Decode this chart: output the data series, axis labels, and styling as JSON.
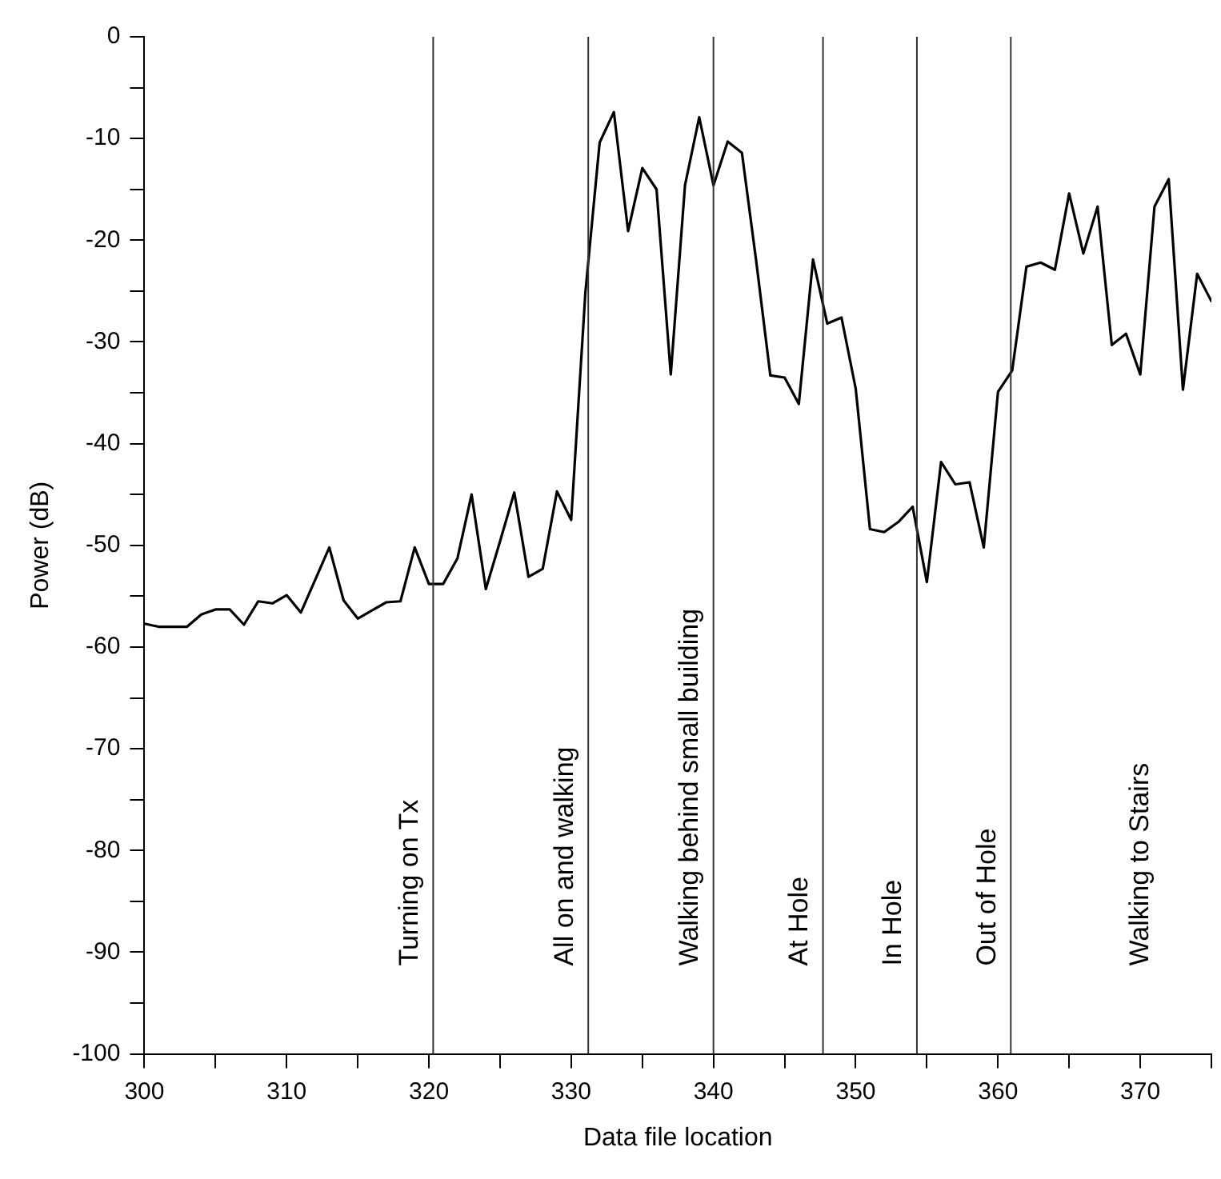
{
  "chart_data": {
    "type": "line",
    "xlabel": "Data file location",
    "ylabel": "Power (dB)",
    "x": [
      300,
      301,
      302,
      303,
      304,
      305,
      306,
      307,
      308,
      309,
      310,
      311,
      312,
      313,
      314,
      315,
      316,
      317,
      318,
      319,
      320,
      321,
      322,
      323,
      324,
      325,
      326,
      327,
      328,
      329,
      330,
      331,
      332,
      333,
      334,
      335,
      336,
      337,
      338,
      339,
      340,
      341,
      342,
      343,
      344,
      345,
      346,
      347,
      348,
      349,
      350,
      351,
      352,
      353,
      354,
      355,
      356,
      357,
      358,
      359,
      360,
      361,
      362,
      363,
      364,
      365,
      366,
      367,
      368,
      369,
      370,
      371,
      372,
      373,
      374,
      375
    ],
    "series": [
      {
        "color": "#000000",
        "values": [
          -57.7,
          -58.0,
          -58.0,
          -58.0,
          -56.8,
          -56.3,
          -56.3,
          -57.8,
          -55.5,
          -55.7,
          -54.9,
          -56.6,
          -53.4,
          -50.2,
          -55.4,
          -57.2,
          -56.4,
          -55.6,
          -55.5,
          -50.2,
          -53.8,
          -53.8,
          -51.3,
          -45.0,
          -54.3,
          -49.6,
          -44.8,
          -53.1,
          -52.3,
          -44.7,
          -47.5,
          -25.1,
          -10.4,
          -7.4,
          -19.1,
          -12.9,
          -15.0,
          -33.2,
          -14.6,
          -7.9,
          -14.6,
          -10.3,
          -11.4,
          -22.0,
          -33.3,
          -33.5,
          -36.1,
          -21.9,
          -28.2,
          -27.6,
          -34.6,
          -48.4,
          -48.7,
          -47.7,
          -46.2,
          -53.6,
          -41.8,
          -44.0,
          -43.8,
          -50.2,
          -34.9,
          -32.8,
          -22.6,
          -22.2,
          -22.9,
          -15.4,
          -21.3,
          -16.7,
          -30.3,
          -29.2,
          -33.2,
          -16.7,
          -14.0,
          -34.7,
          -23.3,
          -26.0
        ]
      }
    ],
    "xlim": [
      300,
      375
    ],
    "xticks": [
      300,
      {
        "value": 305,
        "label": null
      },
      310,
      {
        "value": 315,
        "label": null
      },
      320,
      {
        "value": 325,
        "label": null
      },
      330,
      {
        "value": 335,
        "label": null
      },
      340,
      {
        "value": 345,
        "label": null
      },
      350,
      {
        "value": 355,
        "label": null
      },
      360,
      {
        "value": 365,
        "label": null
      },
      370,
      {
        "value": 375,
        "label": null
      }
    ],
    "ylim": [
      -100,
      0
    ],
    "yticks": [
      -100,
      {
        "value": -95,
        "label": null
      },
      -90,
      {
        "value": -85,
        "label": null
      },
      -80,
      {
        "value": -75,
        "label": null
      },
      -70,
      {
        "value": -65,
        "label": null
      },
      -60,
      {
        "value": -55,
        "label": null
      },
      -50,
      {
        "value": -45,
        "label": null
      },
      -40,
      {
        "value": -35,
        "label": null
      },
      -30,
      {
        "value": -25,
        "label": null
      },
      -20,
      {
        "value": -15,
        "label": null
      },
      -10,
      {
        "value": -5,
        "label": null
      },
      0
    ],
    "ref_lines": [
      {
        "axis": "x",
        "value": 320.3,
        "label": "Turning on Tx",
        "color": "#333333"
      },
      {
        "axis": "x",
        "value": 331.2,
        "label": "All on and walking",
        "color": "#333333"
      },
      {
        "axis": "x",
        "value": 340,
        "label": "Walking behind small building",
        "color": "#333333"
      },
      {
        "axis": "x",
        "value": 347.7,
        "label": "At Hole",
        "color": "#333333"
      },
      {
        "axis": "x",
        "value": 354.3,
        "label": "In Hole",
        "color": "#333333"
      },
      {
        "axis": "x",
        "value": 360.9,
        "label": "Out of Hole",
        "color": "#333333"
      }
    ],
    "annotations": [
      "Walking to Stairs"
    ],
    "grid": false,
    "legend": false,
    "marker": "none",
    "line_style": "solid"
  }
}
